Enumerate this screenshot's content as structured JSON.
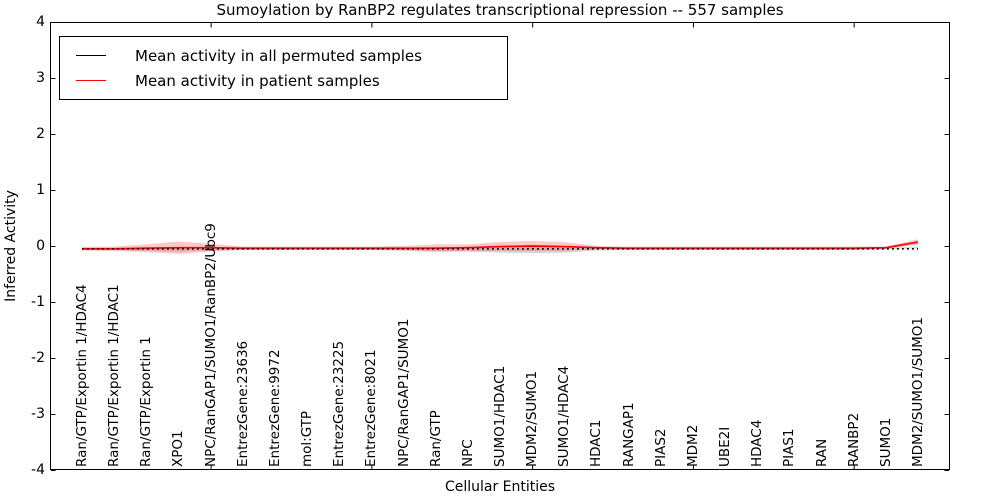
{
  "chart_data": {
    "type": "line",
    "title": "Sumoylation by RanBP2 regulates transcriptional repression -- 557 samples",
    "xlabel": "Cellular Entities",
    "ylabel": "Inferred Activity",
    "ylim": [
      -4,
      4
    ],
    "yticks": [
      -4,
      -3,
      -2,
      -1,
      0,
      1,
      2,
      3,
      4
    ],
    "xtick_positions": [
      5,
      10,
      15,
      20,
      25
    ],
    "grid": false,
    "legend": {
      "position": "upper left",
      "entries": [
        {
          "label": "Mean activity in all permuted samples",
          "color": "#000000"
        },
        {
          "label": "Mean activity in patient samples",
          "color": "#ff0000"
        }
      ]
    },
    "categories": [
      "Ran/GTP/Exportin 1/HDAC4",
      "Ran/GTP/Exportin 1/HDAC1",
      "Ran/GTP/Exportin 1",
      "XPO1",
      "NPC/RanGAP1/SUMO1/RanBP2/Ubc9",
      "EntrezGene:23636",
      "EntrezGene:9972",
      "mol:GTP",
      "EntrezGene:23225",
      "EntrezGene:8021",
      "NPC/RanGAP1/SUMO1",
      "Ran/GTP",
      "NPC",
      "SUMO1/HDAC1",
      "MDM2/SUMO1",
      "SUMO1/HDAC4",
      "HDAC1",
      "RANGAP1",
      "PIAS2",
      "MDM2",
      "UBE2I",
      "HDAC4",
      "PIAS1",
      "RAN",
      "RANBP2",
      "SUMO1",
      "MDM2/SUMO1/SUMO1"
    ],
    "series": [
      {
        "name": "Mean activity in all permuted samples",
        "key": "permuted",
        "color": "#000000",
        "linestyle": "dotted",
        "band_color": "rgba(0,0,0,0.16)",
        "values": [
          -0.05,
          -0.05,
          -0.05,
          -0.05,
          -0.05,
          -0.05,
          -0.05,
          -0.05,
          -0.05,
          -0.05,
          -0.05,
          -0.05,
          -0.05,
          -0.05,
          -0.05,
          -0.05,
          -0.05,
          -0.05,
          -0.05,
          -0.05,
          -0.05,
          -0.05,
          -0.05,
          -0.05,
          -0.05,
          -0.05,
          -0.05
        ],
        "band_upper": [
          -0.03,
          -0.03,
          -0.02,
          -0.02,
          -0.03,
          -0.03,
          -0.03,
          -0.03,
          -0.03,
          -0.03,
          -0.03,
          -0.02,
          -0.02,
          -0.01,
          -0.01,
          -0.01,
          -0.03,
          -0.03,
          -0.03,
          -0.03,
          -0.03,
          -0.03,
          -0.03,
          -0.03,
          -0.03,
          -0.03,
          -0.02
        ],
        "band_lower": [
          -0.07,
          -0.07,
          -0.09,
          -0.1,
          -0.08,
          -0.07,
          -0.07,
          -0.07,
          -0.07,
          -0.07,
          -0.08,
          -0.09,
          -0.1,
          -0.12,
          -0.13,
          -0.12,
          -0.08,
          -0.07,
          -0.07,
          -0.07,
          -0.07,
          -0.07,
          -0.07,
          -0.07,
          -0.07,
          -0.06,
          -0.04
        ]
      },
      {
        "name": "Mean activity in patient samples",
        "key": "patient",
        "color": "#ff0000",
        "linestyle": "solid",
        "band_color": "rgba(255,0,0,0.22)",
        "values": [
          -0.05,
          -0.05,
          -0.04,
          -0.03,
          -0.03,
          -0.04,
          -0.04,
          -0.04,
          -0.04,
          -0.04,
          -0.04,
          -0.04,
          -0.03,
          -0.01,
          0.0,
          -0.01,
          -0.03,
          -0.04,
          -0.04,
          -0.04,
          -0.04,
          -0.04,
          -0.04,
          -0.04,
          -0.04,
          -0.03,
          0.07
        ],
        "band_upper": [
          -0.02,
          -0.01,
          0.03,
          0.08,
          0.04,
          -0.01,
          -0.01,
          -0.01,
          -0.01,
          -0.01,
          0.0,
          0.03,
          0.03,
          0.07,
          0.09,
          0.07,
          0.0,
          -0.01,
          -0.01,
          -0.01,
          -0.01,
          -0.01,
          -0.01,
          -0.01,
          -0.01,
          -0.01,
          0.12
        ],
        "band_lower": [
          -0.08,
          -0.09,
          -0.11,
          -0.14,
          -0.1,
          -0.07,
          -0.07,
          -0.07,
          -0.07,
          -0.07,
          -0.08,
          -0.11,
          -0.09,
          -0.09,
          -0.09,
          -0.09,
          -0.06,
          -0.07,
          -0.07,
          -0.07,
          -0.07,
          -0.07,
          -0.07,
          -0.07,
          -0.07,
          -0.05,
          0.02
        ]
      }
    ]
  }
}
